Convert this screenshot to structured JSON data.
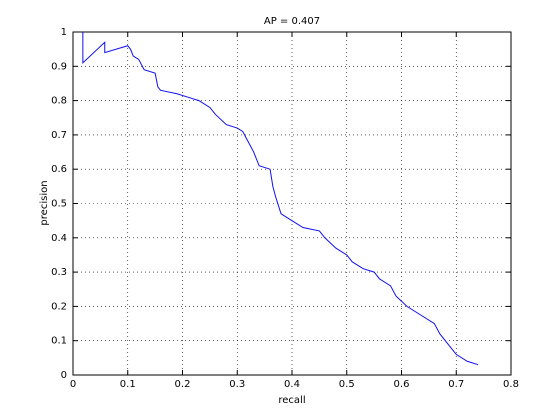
{
  "chart_data": {
    "type": "line",
    "title": "AP = 0.407",
    "x_label": "recall",
    "y_label": "precision",
    "x": [
      0.018,
      0.018,
      0.058,
      0.058,
      0.1,
      0.105,
      0.11,
      0.12,
      0.13,
      0.15,
      0.155,
      0.16,
      0.19,
      0.21,
      0.23,
      0.25,
      0.26,
      0.28,
      0.3,
      0.31,
      0.32,
      0.33,
      0.34,
      0.36,
      0.365,
      0.37,
      0.38,
      0.4,
      0.42,
      0.45,
      0.46,
      0.48,
      0.5,
      0.51,
      0.53,
      0.55,
      0.56,
      0.58,
      0.59,
      0.61,
      0.63,
      0.66,
      0.67,
      0.69,
      0.7,
      0.72,
      0.74
    ],
    "values": [
      1.0,
      0.91,
      0.97,
      0.94,
      0.96,
      0.95,
      0.93,
      0.92,
      0.89,
      0.88,
      0.84,
      0.83,
      0.82,
      0.81,
      0.8,
      0.78,
      0.76,
      0.73,
      0.72,
      0.71,
      0.68,
      0.65,
      0.61,
      0.6,
      0.55,
      0.52,
      0.47,
      0.45,
      0.43,
      0.42,
      0.4,
      0.37,
      0.35,
      0.33,
      0.31,
      0.3,
      0.28,
      0.26,
      0.23,
      0.2,
      0.18,
      0.15,
      0.12,
      0.08,
      0.06,
      0.04,
      0.03
    ],
    "color": "#1010ee",
    "xlim": [
      0,
      0.8
    ],
    "xticks": [
      0,
      0.1,
      0.2,
      0.3,
      0.4,
      0.5,
      0.6,
      0.7,
      0.8
    ],
    "ylim": [
      0,
      1
    ],
    "yticks": [
      0,
      0.1,
      0.2,
      0.3,
      0.4,
      0.5,
      0.6,
      0.7,
      0.8,
      0.9,
      1
    ],
    "grid": true
  }
}
